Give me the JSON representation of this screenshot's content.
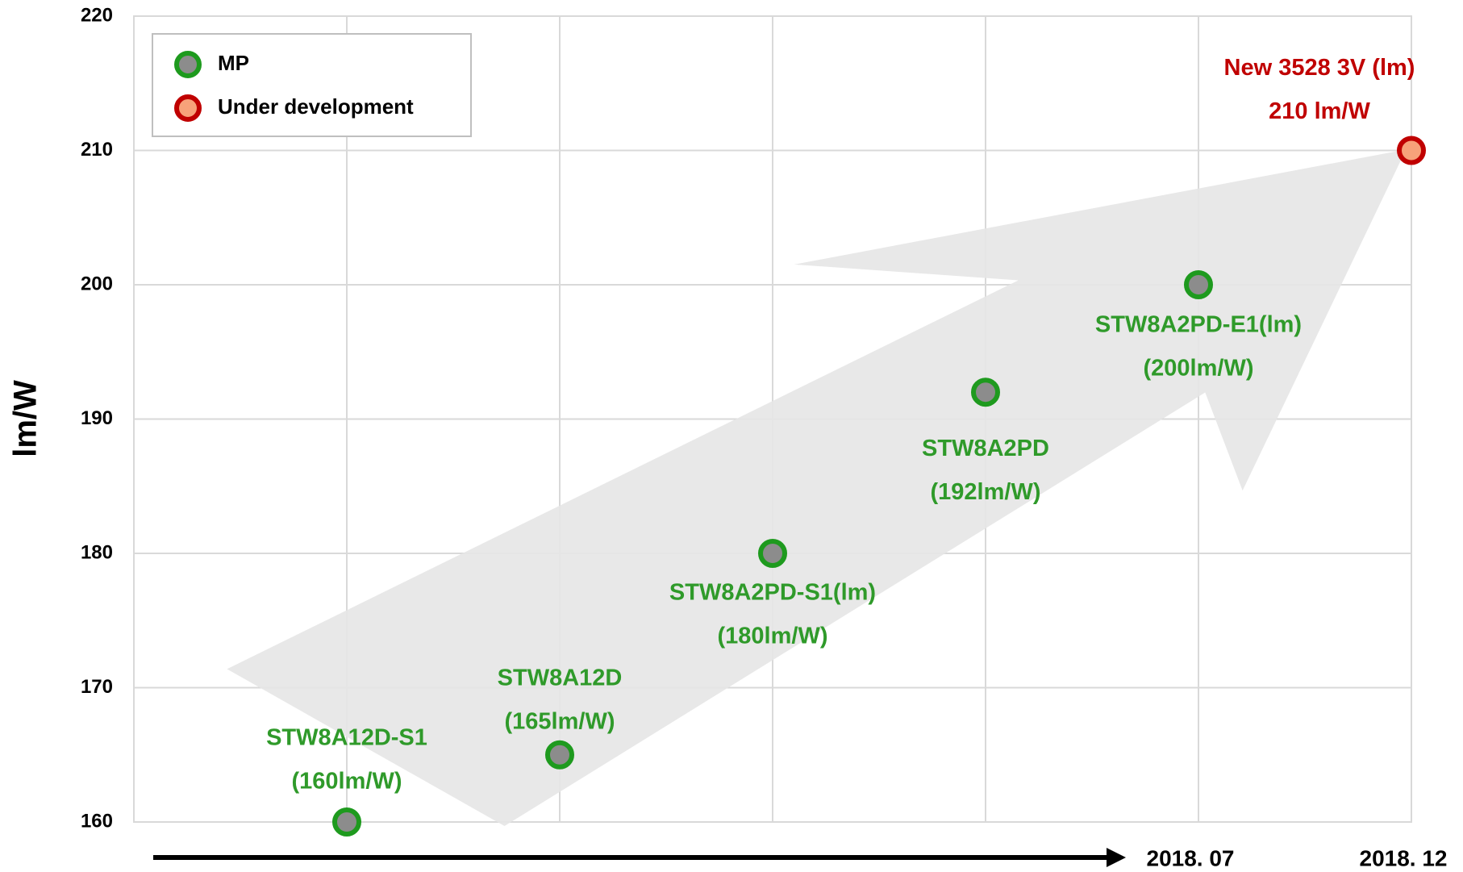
{
  "chart_data": {
    "type": "scatter",
    "ylabel": "lm/W",
    "categories": [
      null,
      null,
      null,
      null,
      "2018. 07",
      "2018. 12"
    ],
    "series": [
      {
        "name": "MP",
        "color": "#8c8c8c",
        "edge_color": "#1e9a1e",
        "label_color": "#2f9a2a",
        "values": [
          160,
          165,
          180,
          192,
          200,
          null
        ],
        "point_labels": [
          "STW8A12D-S1",
          "STW8A12D",
          "STW8A2PD-S1(lm)",
          "STW8A2PD",
          "STW8A2PD-E1(lm)",
          null
        ],
        "value_labels": [
          "(160lm/W)",
          "(165lm/W)",
          "(180lm/W)",
          "(192lm/W)",
          "(200lm/W)",
          null
        ]
      },
      {
        "name": "Under development",
        "color": "#f7a27a",
        "edge_color": "#c00000",
        "label_color": "#c00000",
        "values": [
          null,
          null,
          null,
          null,
          null,
          210
        ],
        "point_labels": [
          null,
          null,
          null,
          null,
          null,
          "New 3528 3V (lm)"
        ],
        "value_labels": [
          null,
          null,
          null,
          null,
          null,
          "210 lm/W"
        ]
      }
    ],
    "ylim": [
      160,
      220
    ],
    "yticks": [
      160,
      170,
      180,
      190,
      200,
      210,
      220
    ],
    "grid": true,
    "legend": "upper left"
  }
}
